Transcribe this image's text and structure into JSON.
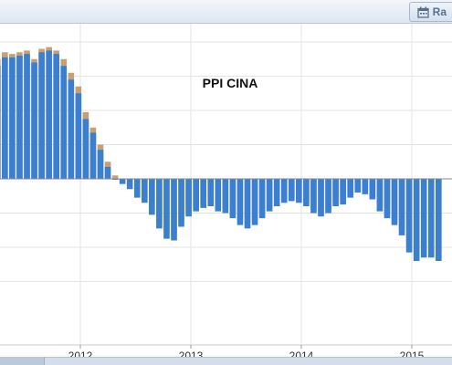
{
  "toolbar": {
    "range_label": "Ra",
    "range_icon": "calendar-icon"
  },
  "colors": {
    "actual_bar": "#3a7fd0",
    "forecast_bar": "#c8a070",
    "gridline": "#e3e3e3",
    "zero_line": "#8a8a8a"
  },
  "chart_data": {
    "type": "bar",
    "title": "PPI CINA",
    "xlabel": "",
    "ylabel": "",
    "x_ticks": [
      "2012",
      "2013",
      "2014",
      "2015"
    ],
    "ylim": [
      -6,
      8
    ],
    "grid": true,
    "series": [
      {
        "values": [
          6.6,
          7.1,
          7.1,
          7.2,
          7.3,
          6.8,
          7.4,
          7.5,
          7.3,
          6.6,
          5.8,
          5.0,
          3.5,
          2.7,
          1.7,
          0.7,
          0.0,
          -0.3,
          -0.6,
          -1.1,
          -1.4,
          -2.1,
          -2.9,
          -3.5,
          -3.6,
          -2.8,
          -2.2,
          -1.9,
          -1.7,
          -1.6,
          -1.9,
          -2.0,
          -2.3,
          -2.7,
          -2.9,
          -2.7,
          -2.3,
          -1.9,
          -1.6,
          -1.4,
          -1.3,
          -1.4,
          -1.6,
          -2.0,
          -2.2,
          -2.0,
          -1.6,
          -1.5,
          -1.1,
          -0.8,
          -0.9,
          -1.2,
          -1.9,
          -2.3,
          -2.7,
          -3.3,
          -4.3,
          -4.8,
          -4.6,
          -4.6,
          -4.8
        ]
      },
      {
        "values": [
          7.0,
          7.4,
          7.3,
          7.4,
          7.5,
          7.0,
          7.6,
          7.7,
          7.5,
          7.0,
          6.2,
          5.4,
          3.9,
          3.0,
          2.0,
          1.0,
          0.2,
          -0.1,
          -0.4,
          -0.9,
          -1.2,
          -1.9,
          -2.6,
          -3.2,
          -3.3,
          -2.5,
          -1.9,
          -1.7,
          -1.5,
          -1.4,
          -1.7,
          -1.8,
          -2.1,
          -2.4,
          -2.6,
          -2.4,
          -2.0,
          -1.6,
          -1.4,
          -1.2,
          -1.1,
          -1.2,
          -1.4,
          -1.8,
          -2.0,
          -1.8,
          -1.4,
          -1.3,
          -0.9,
          -0.6,
          -0.7,
          -1.0,
          -1.6,
          -2.0,
          -2.4,
          -3.0,
          -4.0,
          -4.5,
          -4.4,
          -4.4,
          -4.6
        ]
      }
    ]
  }
}
